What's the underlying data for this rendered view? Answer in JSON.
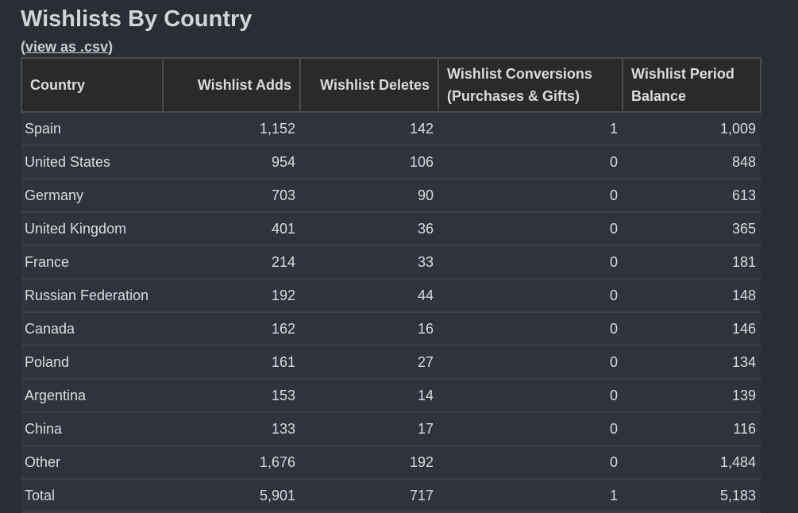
{
  "header": {
    "title": "Wishlists By Country",
    "csv_link": {
      "open": "(",
      "label": "view as .csv",
      "close": ")"
    }
  },
  "table": {
    "columns": [
      "Country",
      "Wishlist Adds",
      "Wishlist Deletes",
      "Wishlist Conversions (Purchases & Gifts)",
      "Wishlist Period Balance"
    ],
    "rows": [
      [
        "Spain",
        "1,152",
        "142",
        "1",
        "1,009"
      ],
      [
        "United States",
        "954",
        "106",
        "0",
        "848"
      ],
      [
        "Germany",
        "703",
        "90",
        "0",
        "613"
      ],
      [
        "United Kingdom",
        "401",
        "36",
        "0",
        "365"
      ],
      [
        "France",
        "214",
        "33",
        "0",
        "181"
      ],
      [
        "Russian Federation",
        "192",
        "44",
        "0",
        "148"
      ],
      [
        "Canada",
        "162",
        "16",
        "0",
        "146"
      ],
      [
        "Poland",
        "161",
        "27",
        "0",
        "134"
      ],
      [
        "Argentina",
        "153",
        "14",
        "0",
        "139"
      ],
      [
        "China",
        "133",
        "17",
        "0",
        "116"
      ],
      [
        "Other",
        "1,676",
        "192",
        "0",
        "1,484"
      ],
      [
        "Total",
        "5,901",
        "717",
        "1",
        "5,183"
      ]
    ]
  }
}
